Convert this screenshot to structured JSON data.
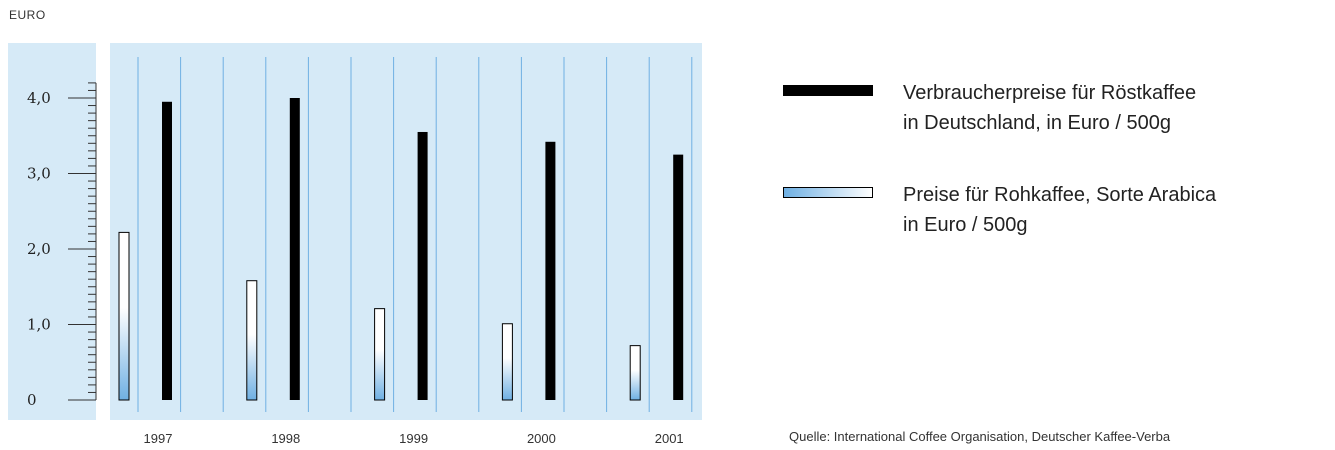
{
  "chart_data": {
    "type": "bar",
    "unit_label": "EURO",
    "categories": [
      "1997",
      "1998",
      "1999",
      "2000",
      "2001"
    ],
    "series": [
      {
        "name": "Preise für Rohkaffee, Sorte Arabica\nin Euro / 500g",
        "color": "#6fb0e3",
        "values": [
          2.22,
          1.58,
          1.21,
          1.01,
          0.72
        ]
      },
      {
        "name": "Verbraucherpreise für Röstkaffee\nin Deutschland, in Euro / 500g",
        "color": "#000000",
        "values": [
          3.95,
          4.0,
          3.55,
          3.42,
          3.25
        ]
      }
    ],
    "y_tick_labels": [
      "0",
      "1,0",
      "2,0",
      "3,0",
      "4,0"
    ],
    "y_ticks": [
      0,
      1,
      2,
      3,
      4
    ],
    "ylim": [
      0,
      4.4
    ],
    "legend_position": "right",
    "grid": true,
    "background": "#d6eaf7",
    "gridline_color": "#6fb0e3"
  },
  "legend": {
    "items": [
      {
        "label": "Verbraucherpreise für Röstkaffee\nin Deutschland, in Euro / 500g",
        "style": "dark"
      },
      {
        "label": "Preise für Rohkaffee, Sorte Arabica\nin Euro / 500g",
        "style": "light"
      }
    ]
  },
  "source": "Quelle: International Coffee Organisation, Deutscher Kaffee-Verba"
}
